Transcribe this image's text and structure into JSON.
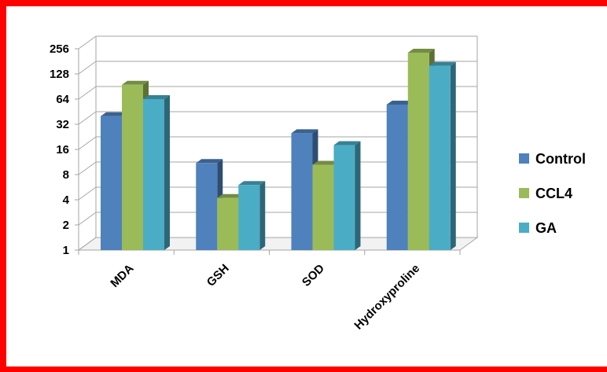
{
  "chart_data": {
    "type": "bar",
    "categories": [
      "MDA",
      "GSH",
      "SOD",
      "Hydroxyproline"
    ],
    "series": [
      {
        "name": "Control",
        "values": [
          40,
          11,
          25,
          55
        ],
        "color": "#4F81BD"
      },
      {
        "name": "CCL4",
        "values": [
          95,
          4.2,
          10.5,
          230
        ],
        "color": "#9BBB59"
      },
      {
        "name": "GA",
        "values": [
          64,
          6,
          18,
          160
        ],
        "color": "#4BACC6"
      }
    ],
    "y_scale": "log2",
    "yticks": [
      "1",
      "2",
      "4",
      "8",
      "16",
      "32",
      "64",
      "128",
      "256"
    ],
    "ylim": [
      1,
      256
    ],
    "grid": true,
    "legend": "right",
    "title": "",
    "xlabel": "",
    "ylabel": ""
  }
}
